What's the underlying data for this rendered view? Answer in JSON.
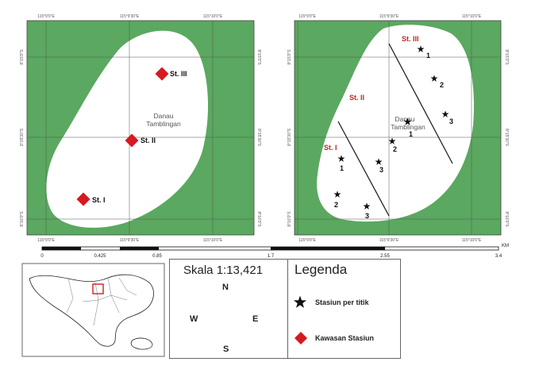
{
  "left_map": {
    "top_coords": [
      "115°9'0\"E",
      "115°9'30\"E",
      "115°10'0\"E"
    ],
    "bottom_coords": [
      "115°9'0\"E",
      "115°9'30\"E",
      "115°10'0\"E"
    ],
    "left_coords": [
      "8°15'0\"S",
      "8°15'30\"S",
      "8°16'0\"S"
    ],
    "right_coords": [
      "8°15'0\"S",
      "8°15'30\"S",
      "8°16'0\"S"
    ],
    "lake_name_line1": "Danau",
    "lake_name_line2": "Tamblingan",
    "stations": [
      {
        "label": "St. III"
      },
      {
        "label": "St. II"
      },
      {
        "label": "St. I"
      }
    ]
  },
  "right_map": {
    "top_coords": [
      "115°9'0\"E",
      "115°9'30\"E",
      "115°10'0\"E"
    ],
    "bottom_coords": [
      "115°9'0\"E",
      "115°9'30\"E",
      "115°10'0\"E"
    ],
    "left_coords": [
      "8°15'0\"S",
      "8°15'30\"S",
      "8°16'0\"S"
    ],
    "right_coords": [
      "8°15'0\"S",
      "8°15'30\"S",
      "8°16'0\"S"
    ],
    "lake_name_line1": "Danau",
    "lake_name_line2": "Tamblingan",
    "zones": [
      "St. III",
      "St. II",
      "St. I"
    ],
    "points": [
      "1",
      "2",
      "3",
      "1",
      "2",
      "3",
      "1",
      "2",
      "3"
    ]
  },
  "scale_bar": {
    "ticks": [
      "0",
      "0.425",
      "0.85",
      "1.7",
      "2.55",
      "3.4"
    ],
    "unit": "KM"
  },
  "scale_box": {
    "title": "Skala 1:13,421",
    "compass": {
      "n": "N",
      "s": "S",
      "e": "E",
      "w": "W"
    }
  },
  "legend": {
    "title": "Legenda",
    "items": [
      {
        "label": "Stasiun per titik",
        "icon": "star-icon"
      },
      {
        "label": "Kawasan Stasiun",
        "icon": "diamond-icon"
      }
    ]
  },
  "colors": {
    "land": "#5ba860",
    "lake": "#ffffff",
    "station": "#d71920",
    "zone_label": "#c0262d"
  }
}
